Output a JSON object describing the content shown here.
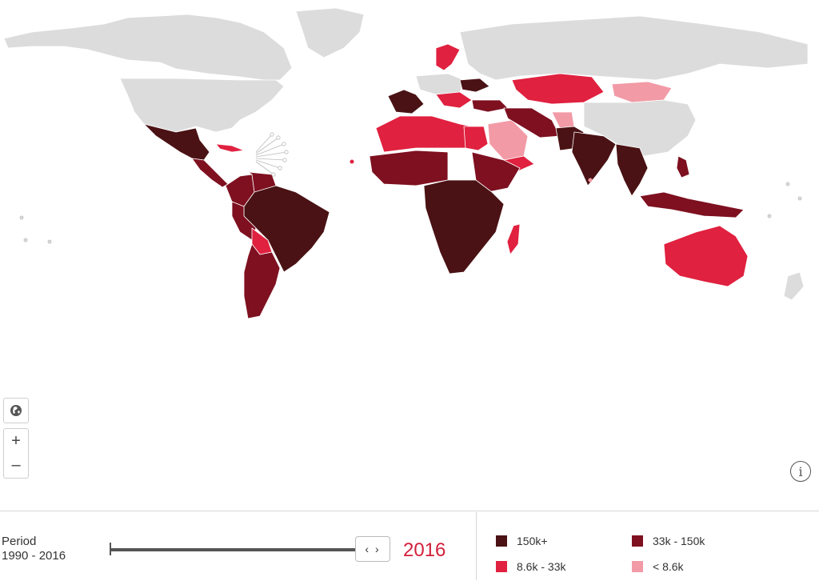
{
  "map": {
    "colors": {
      "land_no_data": "#dcdcdc",
      "border": "#ffffff",
      "c150kplus": "#4a1214",
      "c33k_150k": "#7e1020",
      "c8_6k_33k": "#e0213f",
      "clt8_6k": "#f29aa6"
    }
  },
  "controls": {
    "globe_icon": "globe-icon",
    "zoom_in": "+",
    "zoom_out": "–",
    "info": "i"
  },
  "timeline": {
    "period_label": "Period",
    "period_range": "1990 - 2016",
    "handle_glyph": "‹ ›",
    "year": "2016"
  },
  "legend": {
    "items": [
      {
        "label": "150k+",
        "color": "#4a1214"
      },
      {
        "label": "33k - 150k",
        "color": "#7e1020"
      },
      {
        "label": "8.6k - 33k",
        "color": "#e0213f"
      },
      {
        "label": "< 8.6k",
        "color": "#f29aa6"
      }
    ]
  }
}
